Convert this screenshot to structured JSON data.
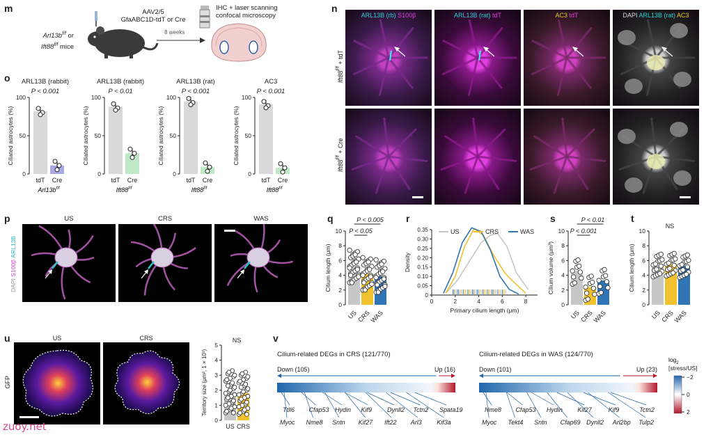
{
  "panels": {
    "m": "m",
    "n": "n",
    "o": "o",
    "p": "p",
    "q": "q",
    "r": "r",
    "s": "s",
    "t": "t",
    "u": "u",
    "v": "v"
  },
  "m": {
    "vector": "AAV2/5",
    "promoter": "GfaABC1D-tdT or Cre",
    "mice_line1": "Arl13b",
    "mice_sup1": "f/f",
    "mice_or": " or",
    "mice_line2": "Ift88",
    "mice_sup2": "f/f",
    "mice_tail": " mice",
    "wait": "8 weeks",
    "method1": "IHC + laser scanning",
    "method2": "confocal microscopy"
  },
  "n": {
    "cols": [
      {
        "parts": [
          {
            "t": "ARL13B (rb) ",
            "c": "#2ad4d4"
          },
          {
            "t": "S100β",
            "c": "#e040e0"
          }
        ]
      },
      {
        "parts": [
          {
            "t": "ARL13B (rat) ",
            "c": "#2ad4d4"
          },
          {
            "t": "tdT",
            "c": "#e040e0"
          }
        ]
      },
      {
        "parts": [
          {
            "t": "AC3 ",
            "c": "#e6d21e"
          },
          {
            "t": "tdT",
            "c": "#e040e0"
          }
        ]
      },
      {
        "parts": [
          {
            "t": "DAPI ",
            "c": "#dddddd"
          },
          {
            "t": "ARL13B (rat) ",
            "c": "#2ad4d4"
          },
          {
            "t": "AC3",
            "c": "#e6d21e"
          }
        ]
      }
    ],
    "rows": [
      {
        "gene": "Ift88",
        "sup": "f/f",
        "rest": " + tdT"
      },
      {
        "gene": "Ift88",
        "sup": "f/f",
        "rest": " + Cre"
      }
    ]
  },
  "o": {
    "y_label": "Ciliated astrocytes (%)",
    "y_ticks": [
      "0",
      "50",
      "100"
    ],
    "x_labels": [
      "tdT",
      "Cre"
    ],
    "charts": [
      {
        "title": "ARL13B (rabbit)",
        "p": "P < 0.001",
        "gene": "Arl13b",
        "sup": "f/f",
        "tdT": 82,
        "Cre": 11,
        "color": "#a9a9e8"
      },
      {
        "title": "ARL13B (rabbit)",
        "p": "P < 0.01",
        "gene": "Ift88",
        "sup": "f/f",
        "tdT": 88,
        "Cre": 27,
        "color": "#bfe8c6"
      },
      {
        "title": "ARL13B (rat)",
        "p": "P < 0.001",
        "gene": "Ift88",
        "sup": "f/f",
        "tdT": 95,
        "Cre": 9,
        "color": "#bfe8c6"
      },
      {
        "title": "AC3",
        "p": "P < 0.001",
        "gene": "Ift88",
        "sup": "f/f",
        "tdT": 91,
        "Cre": 8,
        "color": "#bfe8c6"
      }
    ]
  },
  "p": {
    "y_label_parts": [
      {
        "t": "DAPI ",
        "c": "#999999"
      },
      {
        "t": "S100β ",
        "c": "#d040d0"
      },
      {
        "t": "ARL13B",
        "c": "#2ab6c6"
      }
    ],
    "conditions": [
      "US",
      "CRS",
      "WAS"
    ]
  },
  "q": {
    "ylabel": "Cilium length (μm)",
    "yticks": [
      "0",
      "2",
      "4",
      "6",
      "8",
      "10"
    ],
    "categories": [
      "US",
      "CRS",
      "WAS"
    ],
    "values": [
      5.2,
      4.2,
      3.9
    ],
    "sig": [
      "P < 0.005",
      "P < 0.05"
    ]
  },
  "r": {
    "ylabel": "Density",
    "xlabel": "Primary cilium length (μm)",
    "yticks": [
      "0",
      "0.05",
      "0.10",
      "0.15",
      "0.20",
      "0.25",
      "0.30",
      "0.35"
    ],
    "xticks": [
      "0",
      "2",
      "4",
      "6",
      "8"
    ],
    "legend": [
      "US",
      "CRS",
      "WAS"
    ]
  },
  "s": {
    "ylabel": "Cilium volume (μm³)",
    "yticks": [
      "0",
      "2",
      "4",
      "6",
      "8",
      "10"
    ],
    "categories": [
      "US",
      "CRS",
      "WAS"
    ],
    "values": [
      4.6,
      2.4,
      3.3
    ],
    "sig": [
      "P < 0.01",
      "P < 0.001"
    ]
  },
  "t": {
    "ylabel": "Cilium length (μm)",
    "yticks": [
      "0",
      "2",
      "4",
      "6",
      "8",
      "10"
    ],
    "categories": [
      "US",
      "CRS",
      "WAS"
    ],
    "values": [
      5.4,
      5.5,
      5.3
    ],
    "sig": [
      "NS"
    ]
  },
  "u": {
    "side_label": "GFP",
    "conditions": [
      "US",
      "CRS"
    ],
    "ylabel": "Territory size (μm², 1 × 10³)",
    "yticks": [
      "0",
      "1",
      "2",
      "3",
      "4",
      "5"
    ],
    "categories": [
      "US",
      "CRS"
    ],
    "values": [
      1.9,
      1.8
    ],
    "sig": "NS"
  },
  "v": {
    "crs_title": "Cilium-related DEGs in CRS (121/770)",
    "was_title": "Cilium-related DEGs in WAS (124/770)",
    "crs_down": "Down (105)",
    "crs_up": "Up (16)",
    "was_down": "Down (101)",
    "was_up": "Up (23)",
    "crs_genes_top": [
      "Ttll6",
      "Cfap53",
      "Hydin",
      "Kif9",
      "Dynll2",
      "Tctn2",
      "Spata19"
    ],
    "crs_genes_bot": [
      "Myoc",
      "Nme8",
      "Sntn",
      "Kif27",
      "Ift22",
      "Arl3",
      "Kif3a"
    ],
    "was_genes_top": [
      "Nme8",
      "Cfap53",
      "Hydin",
      "Kif27",
      "Kif9",
      "Tctn2"
    ],
    "was_genes_bot": [
      "Myoc",
      "Tekt4",
      "Sntn",
      "Cfap69",
      "Dynll2",
      "Arl2bp",
      "Tulp2"
    ],
    "scale_title1": "log",
    "scale_sub": "2",
    "scale_title2": "[stress/US]",
    "scale_ticks": [
      "−2",
      "0",
      "2"
    ]
  },
  "watermark": "zuoy.net",
  "colors": {
    "us": "#c7c7c7",
    "crs": "#f2c12e",
    "was": "#2f74b5",
    "magenta": "#e040e0",
    "cyan": "#2ad4d4"
  }
}
